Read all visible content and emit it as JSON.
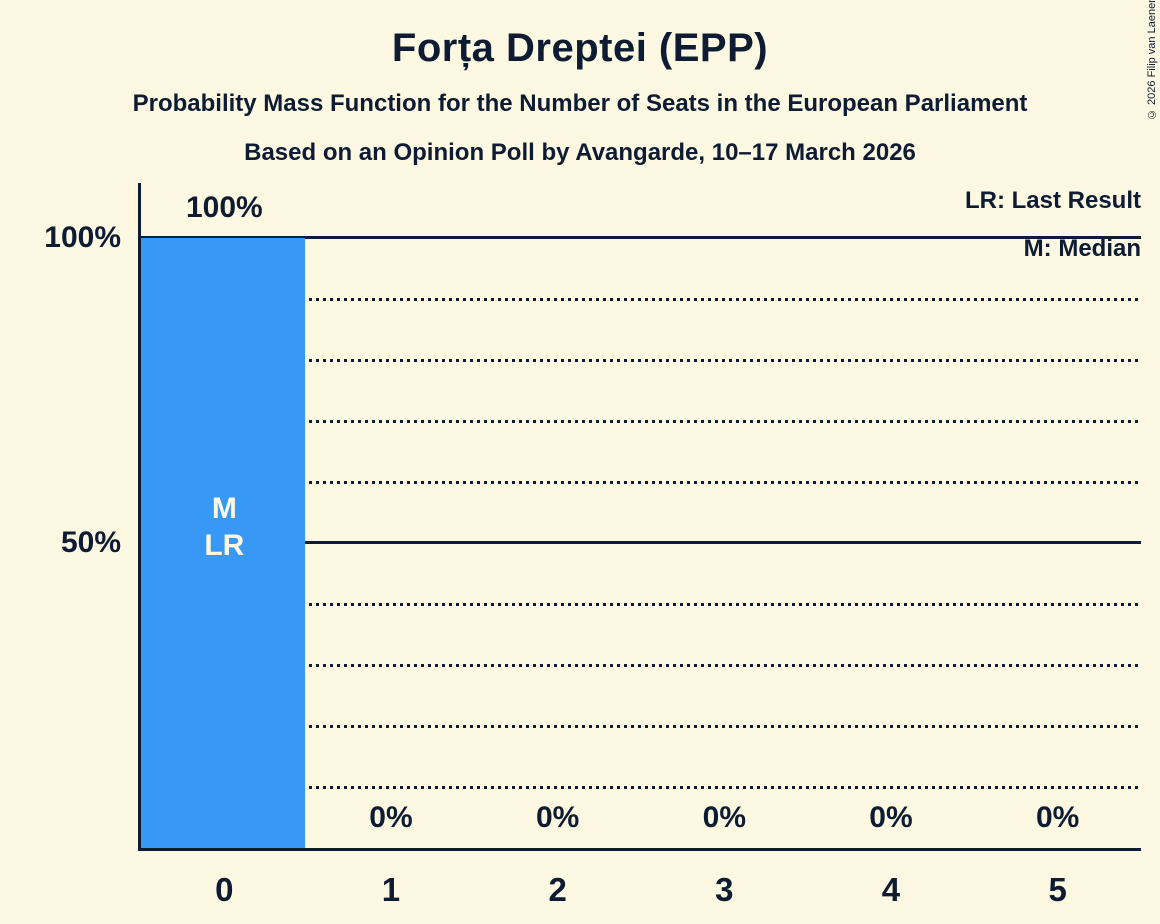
{
  "page": {
    "background": "#fdf8e1",
    "text_color": "#0d1b33",
    "copyright": "© 2026 Filip van Laenen"
  },
  "header": {
    "title": "Forța Dreptei (EPP)",
    "subtitle1": "Probability Mass Function for the Number of Seats in the European Parliament",
    "subtitle2": "Based on an Opinion Poll by Avangarde, 10–17 March 2026"
  },
  "legend": {
    "position": "top-right",
    "items": [
      {
        "abbr": "LR",
        "label": "LR: Last Result"
      },
      {
        "abbr": "M",
        "label": "M: Median"
      }
    ]
  },
  "chart_data": {
    "type": "bar",
    "title": "Forța Dreptei (EPP)",
    "categories": [
      "0",
      "1",
      "2",
      "3",
      "4",
      "5"
    ],
    "values": [
      100,
      0,
      0,
      0,
      0,
      0
    ],
    "bar_labels": [
      "100%",
      "0%",
      "0%",
      "0%",
      "0%",
      "0%"
    ],
    "ylim": [
      0,
      100
    ],
    "y_ticks": [
      {
        "value": 100,
        "label": "100%"
      },
      {
        "value": 50,
        "label": "50%"
      }
    ],
    "gridlines": {
      "dotted_every_percent": 10,
      "solid_at_percent": [
        50,
        100
      ],
      "orientation": "horizontal"
    },
    "bar_color": "#3798f5",
    "bar_annotations": [
      {
        "category": "0",
        "lines": [
          "M",
          "LR"
        ]
      }
    ]
  }
}
